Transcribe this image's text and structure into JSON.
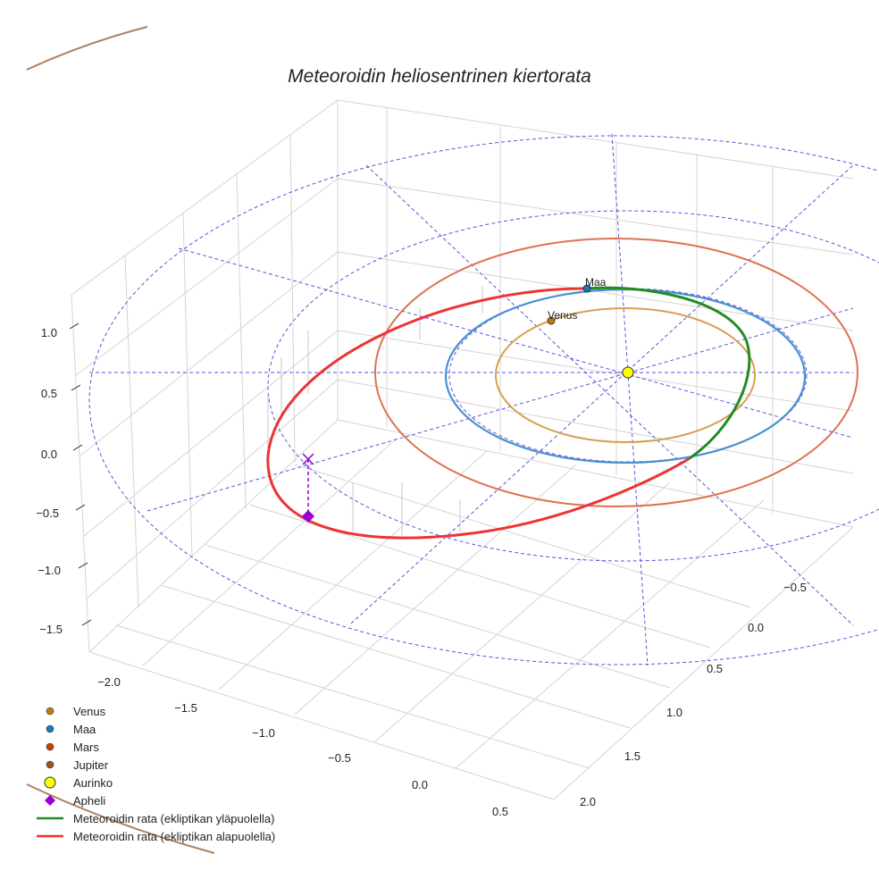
{
  "title": "Meteoroidin heliosentrinen kiertorata",
  "chart_data": {
    "type": "scatter",
    "projection": "3d",
    "title": "Meteoroidin heliosentrinen kiertorata",
    "xlim": [
      -2.2,
      0.6
    ],
    "ylim": [
      -0.7,
      2.1
    ],
    "zlim": [
      -1.6,
      1.2
    ],
    "x_ticks": [
      "−2.0",
      "−1.5",
      "−1.0",
      "−0.5",
      "0.0",
      "0.5"
    ],
    "y_ticks": [
      "−0.5",
      "0.0",
      "0.5",
      "1.0",
      "1.5",
      "2.0"
    ],
    "z_ticks": [
      "1.0",
      "0.5",
      "0.0",
      "−0.5",
      "−1.0",
      "−1.5"
    ],
    "planet_labels": {
      "venus": "Venus",
      "maa": "Maa"
    },
    "legend": [
      {
        "label": "Venus",
        "color": "#c07a14",
        "marker": "circle"
      },
      {
        "label": "Maa",
        "color": "#1f77b4",
        "marker": "circle"
      },
      {
        "label": "Mars",
        "color": "#c1440e",
        "marker": "circle"
      },
      {
        "label": "Jupiter",
        "color": "#a0522d",
        "marker": "circle"
      },
      {
        "label": "Aurinko",
        "color": "#ffff00",
        "marker": "circle-large"
      },
      {
        "label": "Apheli",
        "color": "#9400d3",
        "marker": "diamond"
      },
      {
        "label": "Meteoroidin rata (ekliptikan yläpuolella)",
        "color": "#228b22",
        "marker": "line"
      },
      {
        "label": "Meteoroidin rata (ekliptikan alapuolella)",
        "color": "#ee3333",
        "marker": "line"
      }
    ],
    "legend_position": "lower-left",
    "orbit_radii_au": {
      "venus": 0.72,
      "maa": 1.0,
      "mars": 1.52
    }
  }
}
